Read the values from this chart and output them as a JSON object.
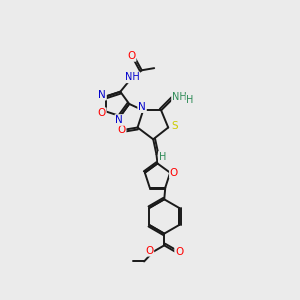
{
  "bg_color": "#ebebeb",
  "bond_color": "#1a1a1a",
  "atom_colors": {
    "O": "#ff0000",
    "N": "#0000cc",
    "S": "#cccc00",
    "C": "#1a1a1a",
    "H": "#2e8b57"
  },
  "figsize": [
    3.0,
    3.0
  ],
  "dpi": 100,
  "xlim": [
    0,
    10
  ],
  "ylim": [
    0,
    14
  ]
}
